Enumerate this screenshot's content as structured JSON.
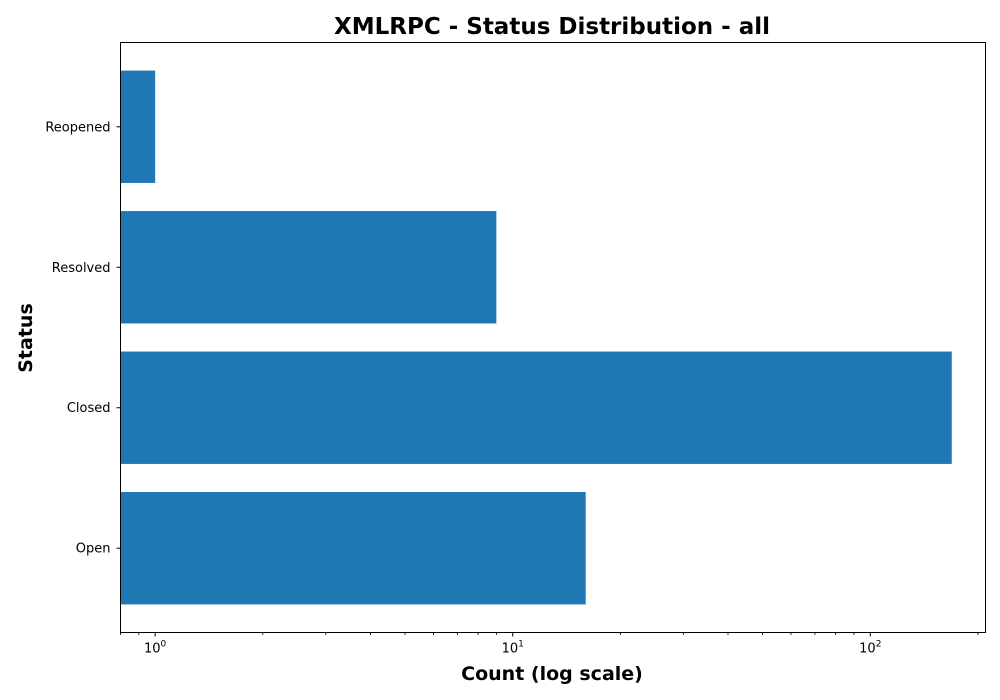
{
  "chart_data": {
    "type": "bar",
    "orientation": "horizontal",
    "title": "XMLRPC - Status Distribution - all",
    "xlabel": "Count (log scale)",
    "ylabel": "Status",
    "x_scale": "log",
    "xlim": [
      0.8,
      210
    ],
    "categories": [
      "Open",
      "Closed",
      "Resolved",
      "Reopened"
    ],
    "values": [
      16,
      169,
      9,
      1
    ],
    "x_ticks": [
      {
        "base": "10",
        "exp": "0",
        "value": 1
      },
      {
        "base": "10",
        "exp": "1",
        "value": 10
      },
      {
        "base": "10",
        "exp": "2",
        "value": 100
      }
    ],
    "grid": false,
    "legend": "none",
    "bar_color": "#1f77b4"
  }
}
